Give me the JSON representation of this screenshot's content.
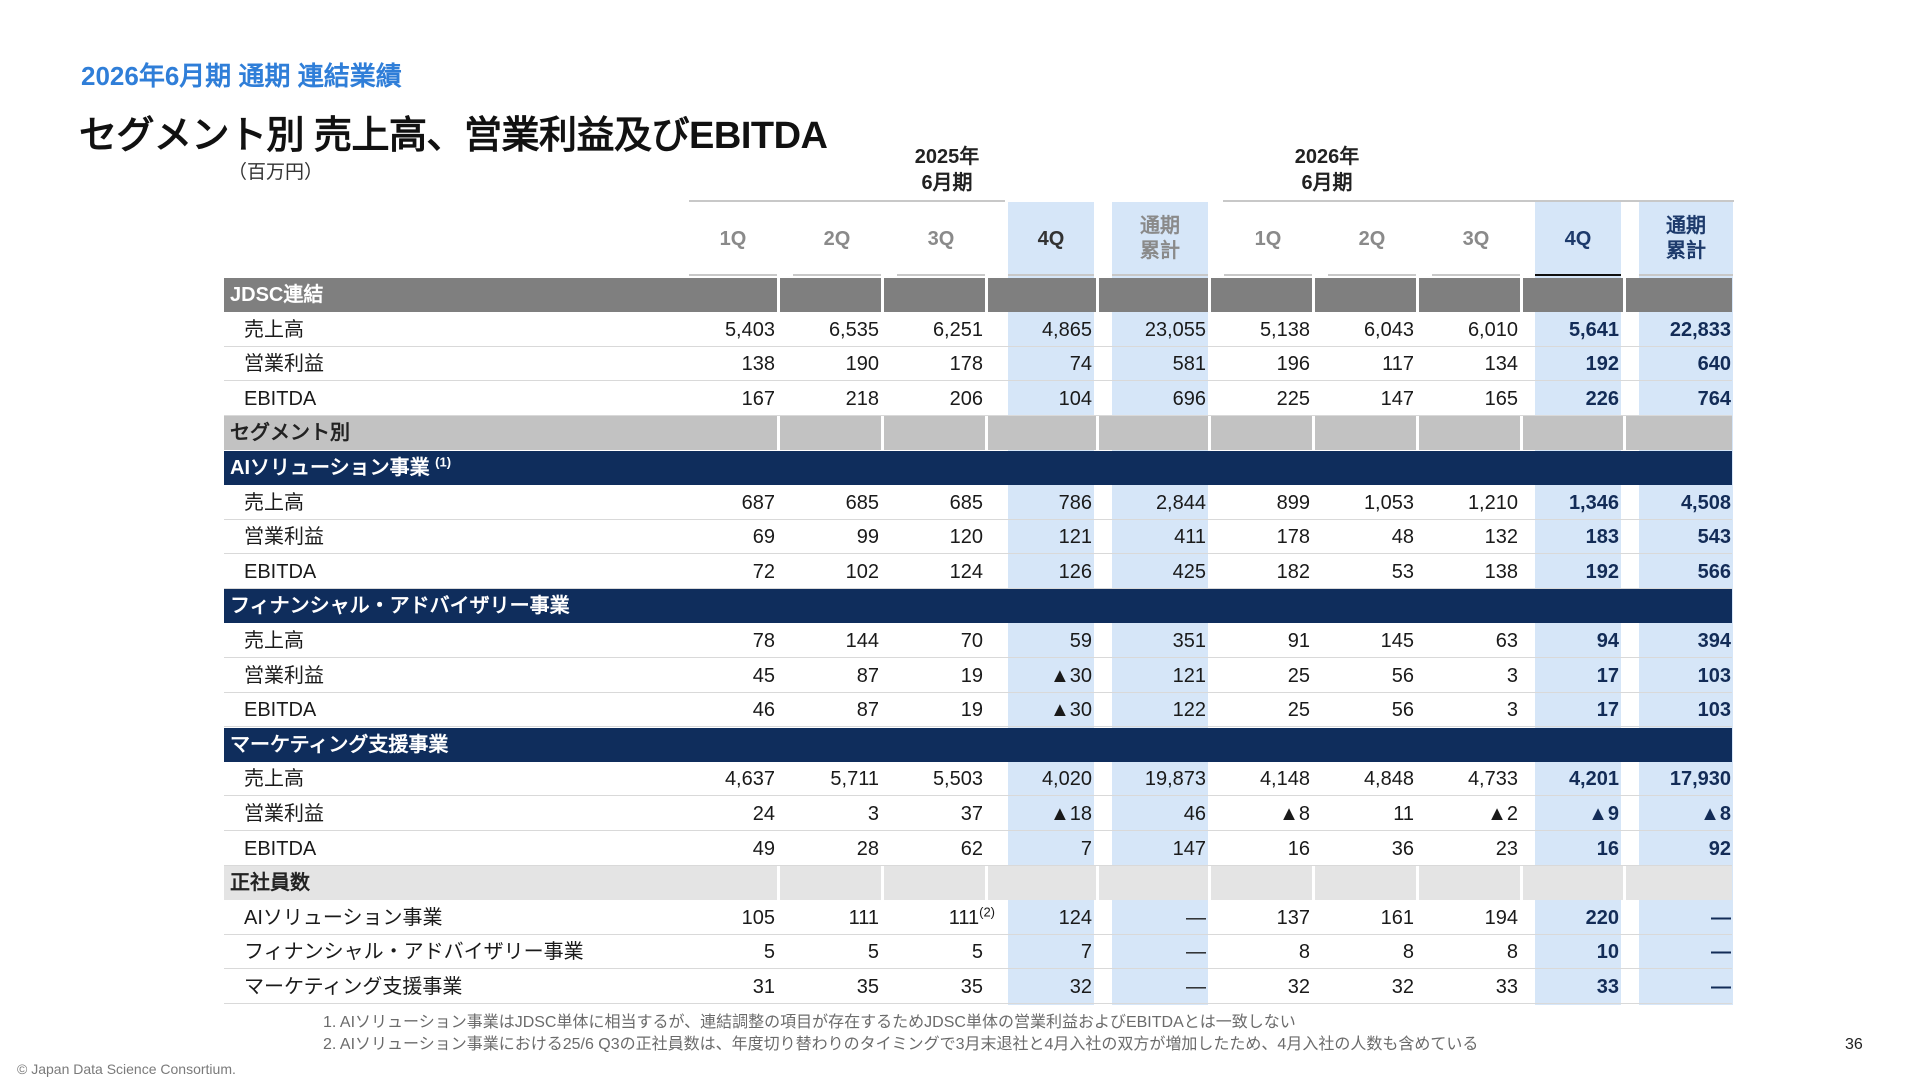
{
  "header": {
    "subtitle": "2026年6月期 通期 連結業績",
    "title": "セグメント別 売上高、営業利益及びEBITDA",
    "unit": "（百万円）",
    "year1": "2025年\n6月期",
    "year2": "2026年\n6月期"
  },
  "columns": [
    "1Q",
    "2Q",
    "3Q",
    "4Q",
    "通期\n累計",
    "1Q",
    "2Q",
    "3Q",
    "4Q",
    "通期\n累計"
  ],
  "rows": [
    {
      "type": "section",
      "style": "dark",
      "label": "JDSC連結"
    },
    {
      "type": "item",
      "label": "売上高",
      "values": [
        "5,403",
        "6,535",
        "6,251",
        "4,865",
        "23,055",
        "5,138",
        "6,043",
        "6,010",
        "5,641",
        "22,833"
      ]
    },
    {
      "type": "item",
      "label": "営業利益",
      "values": [
        "138",
        "190",
        "178",
        "74",
        "581",
        "196",
        "117",
        "134",
        "192",
        "640"
      ]
    },
    {
      "type": "item",
      "label": "EBITDA",
      "values": [
        "167",
        "218",
        "206",
        "104",
        "696",
        "225",
        "147",
        "165",
        "226",
        "764"
      ]
    },
    {
      "type": "section",
      "style": "grey",
      "label": "セグメント別"
    },
    {
      "type": "section",
      "style": "navy",
      "label": "AIソリューション事業",
      "sup": "(1)"
    },
    {
      "type": "item",
      "label": "売上高",
      "values": [
        "687",
        "685",
        "685",
        "786",
        "2,844",
        "899",
        "1,053",
        "1,210",
        "1,346",
        "4,508"
      ]
    },
    {
      "type": "item",
      "label": "営業利益",
      "values": [
        "69",
        "99",
        "120",
        "121",
        "411",
        "178",
        "48",
        "132",
        "183",
        "543"
      ]
    },
    {
      "type": "item",
      "label": "EBITDA",
      "values": [
        "72",
        "102",
        "124",
        "126",
        "425",
        "182",
        "53",
        "138",
        "192",
        "566"
      ]
    },
    {
      "type": "section",
      "style": "navy",
      "label": "フィナンシャル・アドバイザリー事業"
    },
    {
      "type": "item",
      "label": "売上高",
      "values": [
        "78",
        "144",
        "70",
        "59",
        "351",
        "91",
        "145",
        "63",
        "94",
        "394"
      ]
    },
    {
      "type": "item",
      "label": "営業利益",
      "values": [
        "45",
        "87",
        "19",
        "▲30",
        "121",
        "25",
        "56",
        "3",
        "17",
        "103"
      ]
    },
    {
      "type": "item",
      "label": "EBITDA",
      "values": [
        "46",
        "87",
        "19",
        "▲30",
        "122",
        "25",
        "56",
        "3",
        "17",
        "103"
      ]
    },
    {
      "type": "section",
      "style": "navy",
      "label": "マーケティング支援事業"
    },
    {
      "type": "item",
      "label": "売上高",
      "values": [
        "4,637",
        "5,711",
        "5,503",
        "4,020",
        "19,873",
        "4,148",
        "4,848",
        "4,733",
        "4,201",
        "17,930"
      ]
    },
    {
      "type": "item",
      "label": "営業利益",
      "values": [
        "24",
        "3",
        "37",
        "▲18",
        "46",
        "▲8",
        "11",
        "▲2",
        "▲9",
        "▲8"
      ]
    },
    {
      "type": "item",
      "label": "EBITDA",
      "values": [
        "49",
        "28",
        "62",
        "7",
        "147",
        "16",
        "36",
        "23",
        "16",
        "92"
      ]
    },
    {
      "type": "section",
      "style": "light",
      "label": "正社員数"
    },
    {
      "type": "item",
      "label": "AIソリューション事業",
      "values": [
        "105",
        "111",
        "111",
        "124",
        "—",
        "137",
        "161",
        "194",
        "220",
        "—"
      ],
      "sup_col": 2,
      "sup": "(2)"
    },
    {
      "type": "item",
      "label": "フィナンシャル・アドバイザリー事業",
      "values": [
        "5",
        "5",
        "5",
        "7",
        "—",
        "8",
        "8",
        "8",
        "10",
        "—"
      ]
    },
    {
      "type": "item",
      "label": "マーケティング支援事業",
      "values": [
        "31",
        "35",
        "35",
        "32",
        "—",
        "32",
        "32",
        "33",
        "33",
        "—"
      ]
    }
  ],
  "notes": [
    "1.   AIソリューション事業はJDSC単体に相当するが、連結調整の項目が存在するためJDSC単体の営業利益およびEBITDAとは一致しない",
    "2.   AIソリューション事業における25/6 Q3の正社員数は、年度切り替わりのタイミングで3月末退社と4月入社の双方が増加したため、4月入社の人数も含めている"
  ],
  "copyright": "© Japan Data Science Consortium.",
  "page_number": "36",
  "colors": {
    "subtitle": "#2f7ed8",
    "navy": "#0f2d5c",
    "highlight": "#d6e6f8"
  }
}
